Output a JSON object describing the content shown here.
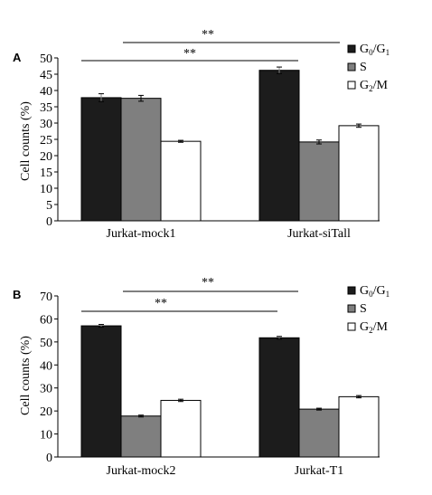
{
  "chart_data": [
    {
      "type": "bar",
      "panel_label": "A",
      "categories": [
        "Jurkat-mock1",
        "Jurkat-siTall"
      ],
      "series": [
        {
          "name": "G0/G1",
          "values": [
            37.8,
            46.2
          ],
          "errors": [
            1.2,
            1.0
          ],
          "color": "#1c1c1c"
        },
        {
          "name": "S",
          "values": [
            37.6,
            24.2
          ],
          "errors": [
            0.9,
            0.6
          ],
          "color": "#7f7f7f"
        },
        {
          "name": "G2/M",
          "values": [
            24.4,
            29.2
          ],
          "errors": [
            0.3,
            0.5
          ],
          "color": "#ffffff"
        }
      ],
      "ylabel": "Cell counts (%)",
      "ylim": [
        0,
        50
      ],
      "yticks": [
        0,
        5,
        10,
        15,
        20,
        25,
        30,
        35,
        40,
        45,
        50
      ],
      "legend": "top-right",
      "significance": [
        "**",
        "**"
      ]
    },
    {
      "type": "bar",
      "panel_label": "B",
      "categories": [
        "Jurkat-mock2",
        "Jurkat-T1"
      ],
      "series": [
        {
          "name": "G0/G1",
          "values": [
            57.0,
            51.8
          ],
          "errors": [
            0.6,
            0.6
          ],
          "color": "#1c1c1c"
        },
        {
          "name": "S",
          "values": [
            17.8,
            20.8
          ],
          "errors": [
            0.4,
            0.4
          ],
          "color": "#7f7f7f"
        },
        {
          "name": "G2/M",
          "values": [
            24.6,
            26.2
          ],
          "errors": [
            0.5,
            0.5
          ],
          "color": "#ffffff"
        }
      ],
      "ylabel": "Cell counts (%)",
      "ylim": [
        0,
        70
      ],
      "yticks": [
        0,
        10,
        20,
        30,
        40,
        50,
        60,
        70
      ],
      "legend": "top-right",
      "significance": [
        "**",
        "**"
      ]
    }
  ]
}
